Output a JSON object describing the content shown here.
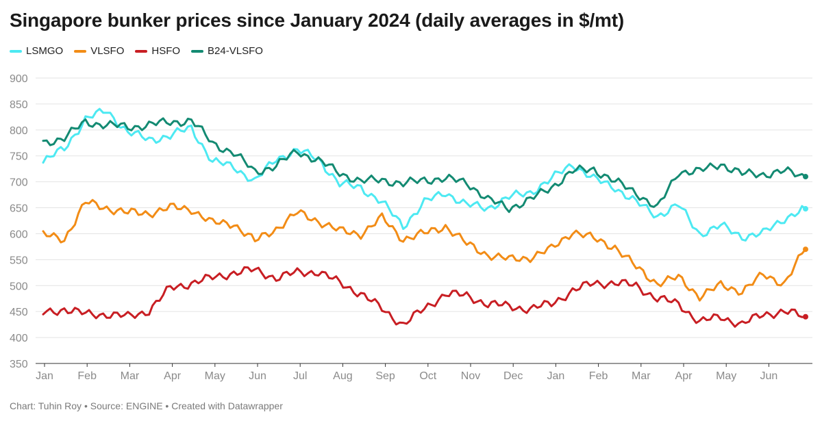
{
  "title": "Singapore bunker prices since January 2024 (daily averages in $/mt)",
  "footer": "Chart: Tuhin Roy • Source: ENGINE • Created with Datawrapper",
  "chart_data": {
    "type": "line",
    "title": "Singapore bunker prices since January 2024 (daily averages in $/mt)",
    "ylim": [
      350,
      900
    ],
    "yticks": [
      900,
      850,
      800,
      750,
      700,
      650,
      600,
      550,
      500,
      450,
      400,
      350
    ],
    "grid": true,
    "legend_position": "top-left",
    "x_tick_labels": [
      "Jan",
      "Feb",
      "Mar",
      "Apr",
      "May",
      "Jun",
      "Jul",
      "Aug",
      "Sep",
      "Oct",
      "Nov",
      "Dec",
      "Jan",
      "Feb",
      "Mar",
      "Apr",
      "May",
      "Jun"
    ],
    "x": [
      "2024-01",
      "2024-01-15",
      "2024-02",
      "2024-02-15",
      "2024-03",
      "2024-03-15",
      "2024-04",
      "2024-04-15",
      "2024-05",
      "2024-05-15",
      "2024-06",
      "2024-06-15",
      "2024-07",
      "2024-07-15",
      "2024-08",
      "2024-08-15",
      "2024-09",
      "2024-09-15",
      "2024-10",
      "2024-10-15",
      "2024-11",
      "2024-11-15",
      "2024-12",
      "2024-12-15",
      "2025-01",
      "2025-01-15",
      "2025-02",
      "2025-02-15",
      "2025-03",
      "2025-03-15",
      "2025-04",
      "2025-04-15",
      "2025-05",
      "2025-05-15",
      "2025-06",
      "2025-06-15",
      "2025-06-30"
    ],
    "series": [
      {
        "name": "LSMGO",
        "color": "#4de9f2",
        "values": [
          737,
          765,
          820,
          838,
          795,
          782,
          788,
          805,
          738,
          730,
          700,
          745,
          760,
          745,
          695,
          690,
          660,
          615,
          660,
          680,
          655,
          650,
          670,
          680,
          705,
          735,
          705,
          690,
          660,
          635,
          655,
          600,
          615,
          595,
          600,
          630,
          648
        ]
      },
      {
        "name": "VLSFO",
        "color": "#f28c16",
        "values": [
          597,
          590,
          660,
          650,
          640,
          640,
          650,
          648,
          620,
          620,
          585,
          610,
          640,
          625,
          605,
          600,
          630,
          590,
          600,
          615,
          580,
          560,
          550,
          555,
          570,
          605,
          590,
          575,
          535,
          505,
          515,
          480,
          500,
          490,
          520,
          505,
          570
        ]
      },
      {
        "name": "HSFO",
        "color": "#c81e23",
        "values": [
          447,
          455,
          445,
          445,
          440,
          452,
          495,
          505,
          515,
          525,
          530,
          515,
          525,
          527,
          505,
          485,
          455,
          425,
          455,
          485,
          480,
          465,
          460,
          455,
          465,
          490,
          505,
          505,
          500,
          475,
          465,
          430,
          440,
          425,
          445,
          450,
          440
        ]
      },
      {
        "name": "B24-VLSFO",
        "color": "#138a72",
        "values": [
          775,
          785,
          815,
          810,
          805,
          810,
          815,
          818,
          775,
          755,
          720,
          730,
          760,
          740,
          718,
          700,
          705,
          695,
          705,
          705,
          700,
          665,
          650,
          665,
          690,
          720,
          725,
          700,
          680,
          648,
          720,
          720,
          735,
          715,
          715,
          720,
          710
        ]
      }
    ]
  }
}
